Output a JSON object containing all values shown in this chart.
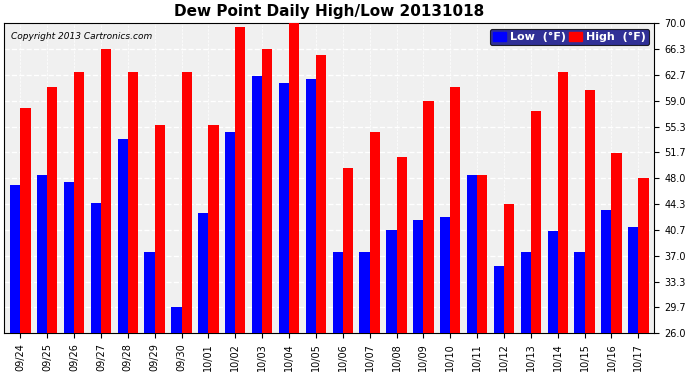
{
  "title": "Dew Point Daily High/Low 20131018",
  "copyright": "Copyright 2013 Cartronics.com",
  "legend_low": "Low  (°F)",
  "legend_high": "High  (°F)",
  "dates": [
    "09/24",
    "09/25",
    "09/26",
    "09/27",
    "09/28",
    "09/29",
    "09/30",
    "10/01",
    "10/02",
    "10/03",
    "10/04",
    "10/05",
    "10/06",
    "10/07",
    "10/08",
    "10/09",
    "10/10",
    "10/11",
    "10/12",
    "10/13",
    "10/14",
    "10/15",
    "10/16",
    "10/17"
  ],
  "high": [
    58.0,
    61.0,
    63.0,
    66.3,
    63.0,
    55.5,
    63.0,
    55.5,
    69.5,
    66.3,
    70.0,
    65.5,
    49.5,
    54.5,
    51.0,
    59.0,
    61.0,
    48.5,
    44.3,
    57.5,
    63.0,
    60.5,
    51.5,
    48.0
  ],
  "low": [
    47.0,
    48.5,
    47.5,
    44.5,
    53.5,
    37.5,
    29.7,
    43.0,
    54.5,
    62.5,
    61.5,
    62.0,
    37.5,
    37.5,
    40.7,
    42.0,
    42.5,
    48.5,
    35.5,
    37.5,
    40.5,
    37.5,
    43.5,
    41.0
  ],
  "ylim_min": 26.0,
  "ylim_max": 70.0,
  "yticks": [
    26.0,
    29.7,
    33.3,
    37.0,
    40.7,
    44.3,
    48.0,
    51.7,
    55.3,
    59.0,
    62.7,
    66.3,
    70.0
  ],
  "bar_width": 0.38,
  "low_color": "#0000ff",
  "high_color": "#ff0000",
  "background_color": "#ffffff",
  "plot_bg_color": "#f0f0f0",
  "grid_color": "#ffffff",
  "title_fontsize": 11,
  "tick_fontsize": 7,
  "legend_fontsize": 8
}
